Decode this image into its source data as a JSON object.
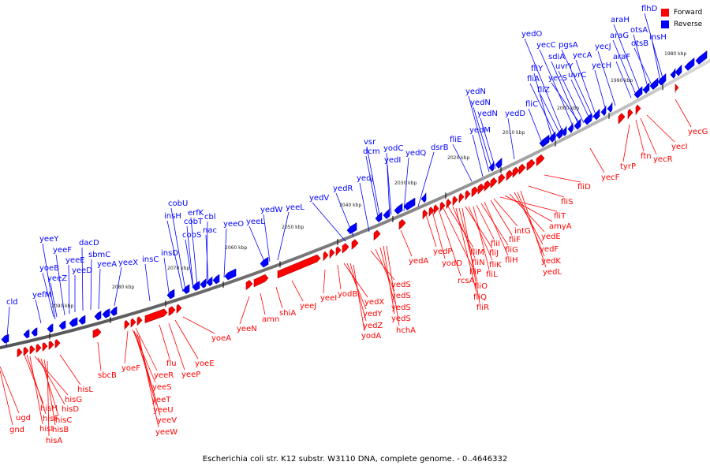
{
  "legend": [
    {
      "label": "Forward",
      "color": "#ff0000"
    },
    {
      "label": "Reverse",
      "color": "#0000ff"
    }
  ],
  "caption": "Escherichia coli str. K12 substr. W3110 DNA, complete genome. - 0..4646332",
  "colors": {
    "forward": "#ff0000",
    "reverse": "#0000ff",
    "backbone": "#888888"
  },
  "ticks": [
    "2090 kbp",
    "2080 kbp",
    "2070 kbp",
    "2060 kbp",
    "2050 kbp",
    "2040 kbp",
    "2030 kbp",
    "2020 kbp",
    "2010 kbp",
    "2000 kbp",
    "1990 kbp",
    "1980 kbp"
  ],
  "reverse_genes": [
    "cld",
    "yefM",
    "yeeY",
    "yoeB",
    "yeeF",
    "yeeZ",
    "yeeE",
    "yeeD",
    "dacD",
    "sbmC",
    "yeeA",
    "yeeX",
    "insC",
    "insD",
    "cobU",
    "insH",
    "cobT",
    "erfK",
    "cobS",
    "cbl",
    "nac",
    "yeeO",
    "yeeL",
    "yeeL",
    "yedW",
    "yedV",
    "yedR",
    "yedJ",
    "vsr",
    "dcm",
    "yodC",
    "yedI",
    "yedQ",
    "dsrB",
    "fliE",
    "yedM",
    "yedN",
    "yedN",
    "yedN",
    "yedD",
    "fliC",
    "fliY",
    "fliA",
    "fliZ",
    "yedO",
    "yecC",
    "sdiA",
    "yecS",
    "uvrY",
    "uvrC",
    "pgsA",
    "yecA",
    "yecH",
    "yecJ",
    "araF",
    "araG",
    "araH",
    "otsA",
    "otsB",
    "insH",
    "flhD"
  ],
  "forward_genes": [
    "ugd",
    "gnd",
    "hisH",
    "hisF",
    "hisI",
    "hisG",
    "hisD",
    "hisC",
    "hisB",
    "hisA",
    "hisL",
    "sbcB",
    "yoeF",
    "yeeR",
    "yeeS",
    "yeeT",
    "yeeU",
    "yeeV",
    "yeeW",
    "flu",
    "yeeP",
    "yoeE",
    "yoeA",
    "yeeN",
    "amn",
    "shiA",
    "yeeJ",
    "yeeI",
    "yodB",
    "yedX",
    "yedY",
    "yedZ",
    "yodA",
    "yedS",
    "yedS",
    "yedS",
    "yedS",
    "hchA",
    "yedA",
    "yedP",
    "yodD",
    "rcsA",
    "fliP",
    "fliM",
    "fliN",
    "fliQ",
    "fliO",
    "fliR",
    "fliJ",
    "fliK",
    "fliL",
    "fliI",
    "fliG",
    "fliH",
    "fliF",
    "intG",
    "fliT",
    "amyA",
    "yedE",
    "yedF",
    "yedK",
    "yedL",
    "fliS",
    "fliD",
    "yecF",
    "tyrP",
    "ftn",
    "yecR",
    "yecI",
    "yecG"
  ]
}
